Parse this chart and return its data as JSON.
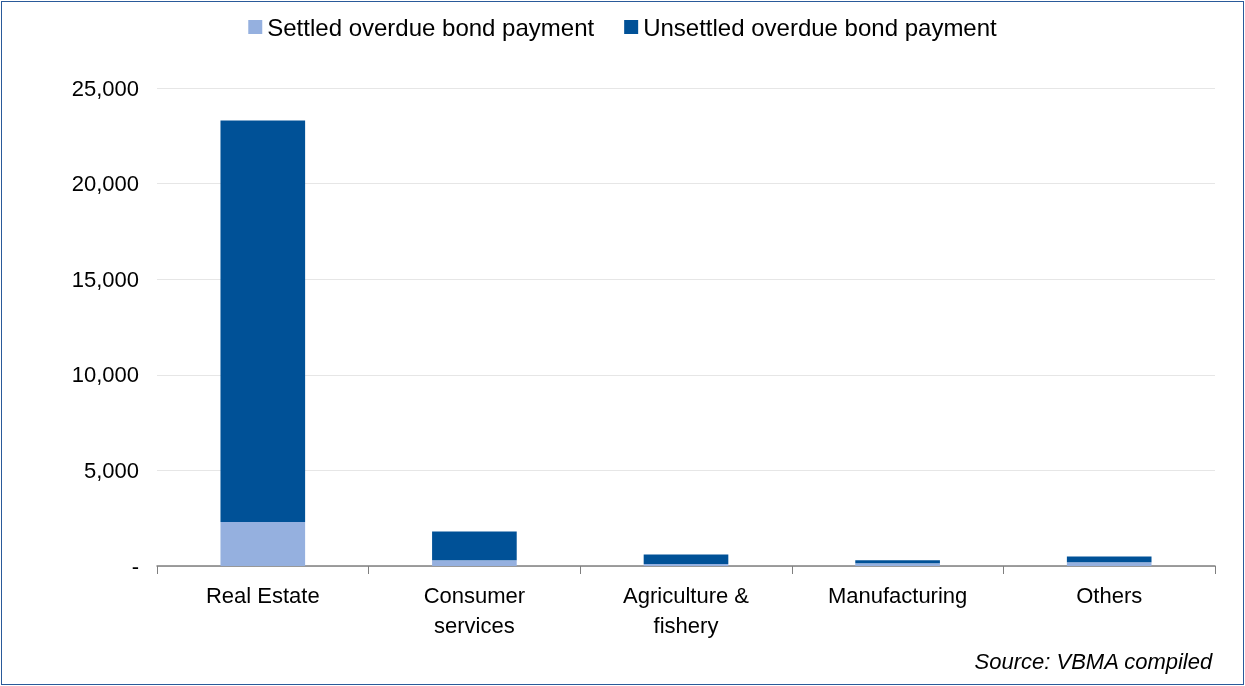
{
  "chart_data": {
    "type": "bar",
    "stacked": true,
    "categories": [
      "Real Estate",
      "Consumer\nservices",
      "Agriculture &\nfishery",
      "Manufacturing",
      "Others"
    ],
    "series": [
      {
        "name": "Settled overdue bond payment",
        "color": "#95b0df",
        "values": [
          2300,
          300,
          100,
          150,
          200
        ]
      },
      {
        "name": "Unsettled overdue bond payment",
        "color": "#005197",
        "values": [
          21000,
          1500,
          500,
          150,
          300
        ]
      }
    ],
    "ylim": [
      0,
      25000
    ],
    "yticks": [
      {
        "value": 0,
        "label": "-"
      },
      {
        "value": 5000,
        "label": "5,000"
      },
      {
        "value": 10000,
        "label": "10,000"
      },
      {
        "value": 15000,
        "label": "15,000"
      },
      {
        "value": 20000,
        "label": "20,000"
      },
      {
        "value": 25000,
        "label": "25,000"
      }
    ],
    "grid": "y",
    "legend": "top",
    "annotations": [
      "Source: VBMA compiled"
    ]
  }
}
